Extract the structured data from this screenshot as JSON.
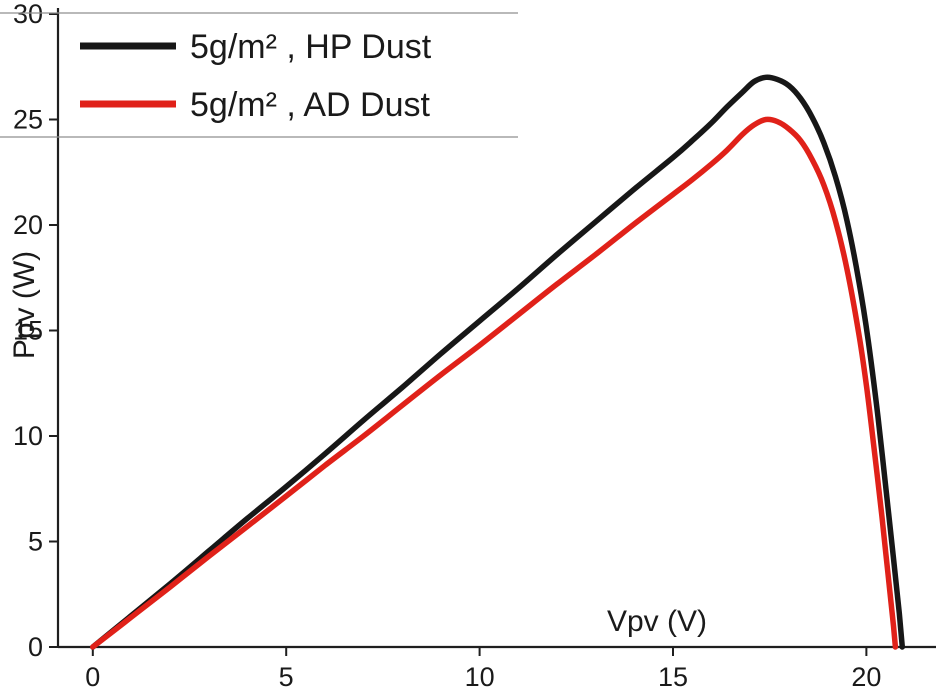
{
  "figure": {
    "kind": "pv-characteristic-curve",
    "background": "#ffffff"
  },
  "colors": {
    "axis": "#1f1f1f",
    "text": "#1a1a1a",
    "legend_border": "#8f8f8f",
    "series_hp": "#171717",
    "series_ad": "#e02119"
  },
  "chart_data": {
    "type": "line",
    "title": "",
    "xlabel": "Vpv (V)",
    "ylabel": "Ppv (W)",
    "xlim": [
      -0.9,
      21.8
    ],
    "ylim": [
      0,
      30
    ],
    "xticks": [
      0,
      5,
      10,
      15,
      20
    ],
    "yticks": [
      0,
      5,
      10,
      15,
      20,
      25,
      30
    ],
    "grid": false,
    "legend_position": "top-left",
    "series": [
      {
        "name": "5g/m² , HP Dust",
        "color": "#171717",
        "peak": {
          "v": 17.2,
          "p": 27.0
        },
        "points": [
          [
            0,
            0
          ],
          [
            1,
            1.5
          ],
          [
            2,
            3.0
          ],
          [
            3,
            4.55
          ],
          [
            4,
            6.1
          ],
          [
            5,
            7.6
          ],
          [
            6,
            9.15
          ],
          [
            7,
            10.75
          ],
          [
            8,
            12.3
          ],
          [
            9,
            13.9
          ],
          [
            10,
            15.45
          ],
          [
            11,
            17.0
          ],
          [
            12,
            18.6
          ],
          [
            13,
            20.15
          ],
          [
            14,
            21.7
          ],
          [
            15,
            23.2
          ],
          [
            15.5,
            24.0
          ],
          [
            16,
            24.85
          ],
          [
            16.4,
            25.6
          ],
          [
            16.8,
            26.3
          ],
          [
            17.1,
            26.8
          ],
          [
            17.4,
            27.0
          ],
          [
            17.7,
            26.9
          ],
          [
            18.0,
            26.6
          ],
          [
            18.3,
            26.0
          ],
          [
            18.6,
            25.1
          ],
          [
            18.9,
            23.9
          ],
          [
            19.2,
            22.3
          ],
          [
            19.5,
            20.2
          ],
          [
            19.8,
            17.4
          ],
          [
            20.05,
            14.5
          ],
          [
            20.3,
            10.9
          ],
          [
            20.5,
            7.6
          ],
          [
            20.7,
            4.2
          ],
          [
            20.85,
            1.6
          ],
          [
            20.93,
            0
          ]
        ]
      },
      {
        "name": "5g/m² , AD Dust",
        "color": "#e02119",
        "peak": {
          "v": 17.0,
          "p": 25.0
        },
        "points": [
          [
            0,
            0
          ],
          [
            1,
            1.42
          ],
          [
            2,
            2.85
          ],
          [
            3,
            4.3
          ],
          [
            4,
            5.72
          ],
          [
            5,
            7.15
          ],
          [
            6,
            8.6
          ],
          [
            7,
            10.0
          ],
          [
            8,
            11.45
          ],
          [
            9,
            12.9
          ],
          [
            10,
            14.3
          ],
          [
            11,
            15.75
          ],
          [
            12,
            17.2
          ],
          [
            13,
            18.6
          ],
          [
            14,
            20.05
          ],
          [
            15,
            21.45
          ],
          [
            15.5,
            22.15
          ],
          [
            16,
            22.9
          ],
          [
            16.4,
            23.55
          ],
          [
            16.8,
            24.3
          ],
          [
            17.1,
            24.75
          ],
          [
            17.4,
            25.0
          ],
          [
            17.7,
            24.9
          ],
          [
            18.0,
            24.55
          ],
          [
            18.3,
            24.0
          ],
          [
            18.6,
            23.1
          ],
          [
            18.9,
            21.9
          ],
          [
            19.2,
            20.2
          ],
          [
            19.5,
            17.9
          ],
          [
            19.8,
            14.9
          ],
          [
            20.0,
            12.4
          ],
          [
            20.2,
            9.4
          ],
          [
            20.4,
            6.2
          ],
          [
            20.55,
            3.6
          ],
          [
            20.7,
            1.0
          ],
          [
            20.75,
            0
          ]
        ]
      }
    ]
  }
}
